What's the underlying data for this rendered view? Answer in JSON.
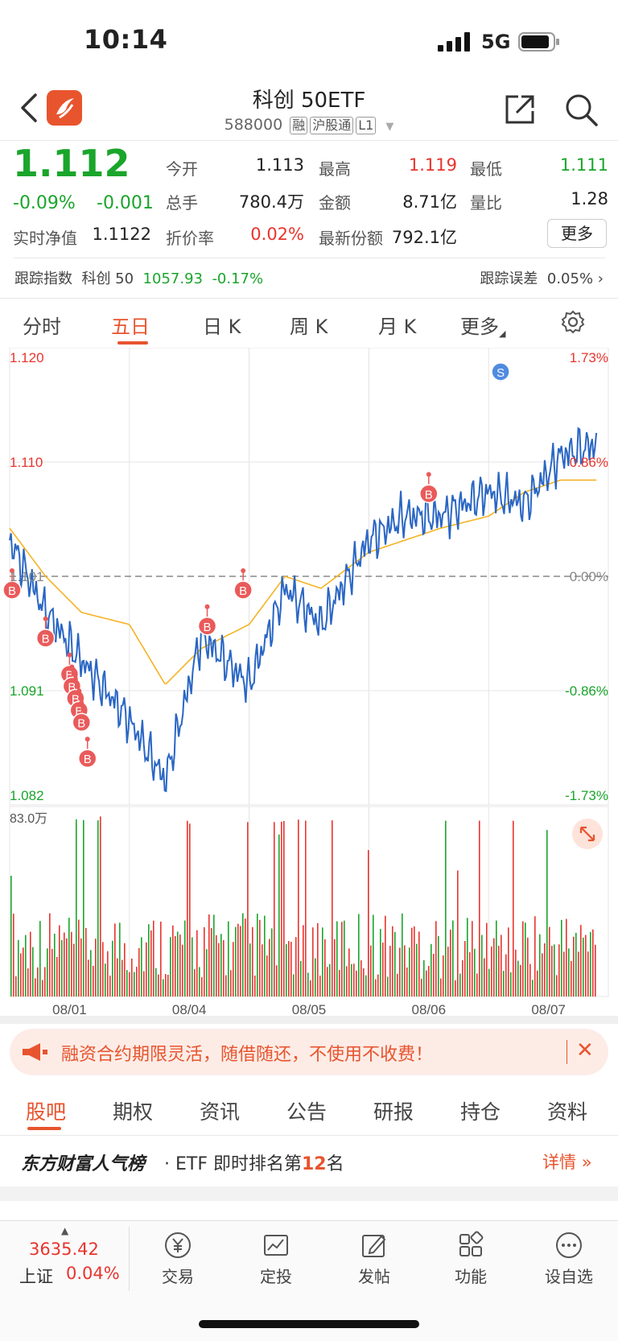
{
  "status": {
    "time": "10:14",
    "network": "5G"
  },
  "nav": {
    "title": "科创 50ETF",
    "code": "588000",
    "tags": [
      "融",
      "沪股通",
      "L1"
    ]
  },
  "quote": {
    "price": "1.112",
    "change_pct": "-0.09%",
    "change_abs": "-0.001",
    "items": [
      {
        "label": "今开",
        "value": "1.113"
      },
      {
        "label": "最高",
        "value": "1.119"
      },
      {
        "label": "最低",
        "value": "1.111"
      },
      {
        "label": "总手",
        "value": "780.4万"
      },
      {
        "label": "金额",
        "value": "8.71亿"
      },
      {
        "label": "量比",
        "value": "1.28"
      },
      {
        "label": "实时净值",
        "value": "1.1122"
      },
      {
        "label": "折价率",
        "value": "0.02%"
      },
      {
        "label": "最新份额",
        "value": "792.1亿"
      }
    ],
    "more_label": "更多",
    "colors": {
      "up": "#e8342e",
      "down": "#1aa52b"
    }
  },
  "tracking": {
    "label": "跟踪指数",
    "index_name": "科创 50",
    "index_value": "1057.93",
    "index_change": "-0.17%",
    "error_label": "跟踪误差",
    "error_value": "0.05%"
  },
  "kline_tabs": [
    "分时",
    "五日",
    "日 K",
    "周 K",
    "月 K",
    "更多"
  ],
  "chart_data": {
    "type": "line",
    "y_left_ticks": [
      "1.120",
      "1.110",
      "1.101",
      "1.091",
      "1.082"
    ],
    "y_right_ticks": [
      "1.73%",
      "0.86%",
      "0.00%",
      "-0.86%",
      "-1.73%"
    ],
    "ylim": [
      1.082,
      1.12
    ],
    "prev_close": 1.101,
    "x_ticks": [
      "08/01",
      "08/04",
      "08/05",
      "08/06",
      "08/07"
    ],
    "volume_max_label": "83.0万",
    "series": [
      {
        "x": [
          0,
          0.3,
          0.6,
          1,
          1.3,
          1.6,
          2,
          2.3,
          2.6,
          3,
          3.3,
          3.6,
          4,
          4.3,
          4.6,
          4.9
        ],
        "values": [
          1.104,
          1.098,
          1.094,
          1.089,
          1.084,
          1.096,
          1.092,
          1.1,
          1.097,
          1.104,
          1.106,
          1.106,
          1.108,
          1.107,
          1.111,
          1.112
        ]
      },
      {
        "x": [
          0,
          0.3,
          0.6,
          1,
          1.3,
          1.6,
          2,
          2.3,
          2.6,
          3,
          3.3,
          3.6,
          4,
          4.3,
          4.6,
          4.9
        ],
        "values": [
          1.105,
          1.101,
          1.098,
          1.097,
          1.092,
          1.095,
          1.097,
          1.101,
          1.1,
          1.103,
          1.104,
          1.105,
          1.106,
          1.108,
          1.109,
          1.109
        ]
      }
    ],
    "markers": [
      {
        "label": "B",
        "x": 0.02,
        "value": 1.1
      },
      {
        "label": "B",
        "x": 0.3,
        "value": 1.096
      },
      {
        "label": "B",
        "x": 0.5,
        "value": 1.093
      },
      {
        "label": "B",
        "x": 0.52,
        "value": 1.092
      },
      {
        "label": "B",
        "x": 0.55,
        "value": 1.091
      },
      {
        "label": "B",
        "x": 0.58,
        "value": 1.09
      },
      {
        "label": "B",
        "x": 0.6,
        "value": 1.089
      },
      {
        "label": "B",
        "x": 0.65,
        "value": 1.086
      },
      {
        "label": "B",
        "x": 1.65,
        "value": 1.097
      },
      {
        "label": "B",
        "x": 1.95,
        "value": 1.1
      },
      {
        "label": "B",
        "x": 3.5,
        "value": 1.108
      },
      {
        "label": "S",
        "x": 4.1,
        "value": 1.118
      }
    ]
  },
  "banner": {
    "text": "融资合约期限灵活，随借随还，不使用不收费！"
  },
  "bottom_tabs": [
    "股吧",
    "期权",
    "资讯",
    "公告",
    "研报",
    "持仓",
    "资料"
  ],
  "ranking": {
    "brand": "东方财富人气榜",
    "text_prefix": "· ETF 即时排名第",
    "rank": "12",
    "text_suffix": "名",
    "detail": "详情"
  },
  "index_widget": {
    "value": "3635.42",
    "name": "上证",
    "change": "0.04%"
  },
  "bottom_bar": [
    {
      "icon": "yen-icon",
      "label": "交易"
    },
    {
      "icon": "chart-icon",
      "label": "定投"
    },
    {
      "icon": "edit-icon",
      "label": "发帖"
    },
    {
      "icon": "grid-icon",
      "label": "功能"
    },
    {
      "icon": "more-dots-icon",
      "label": "设自选"
    }
  ]
}
